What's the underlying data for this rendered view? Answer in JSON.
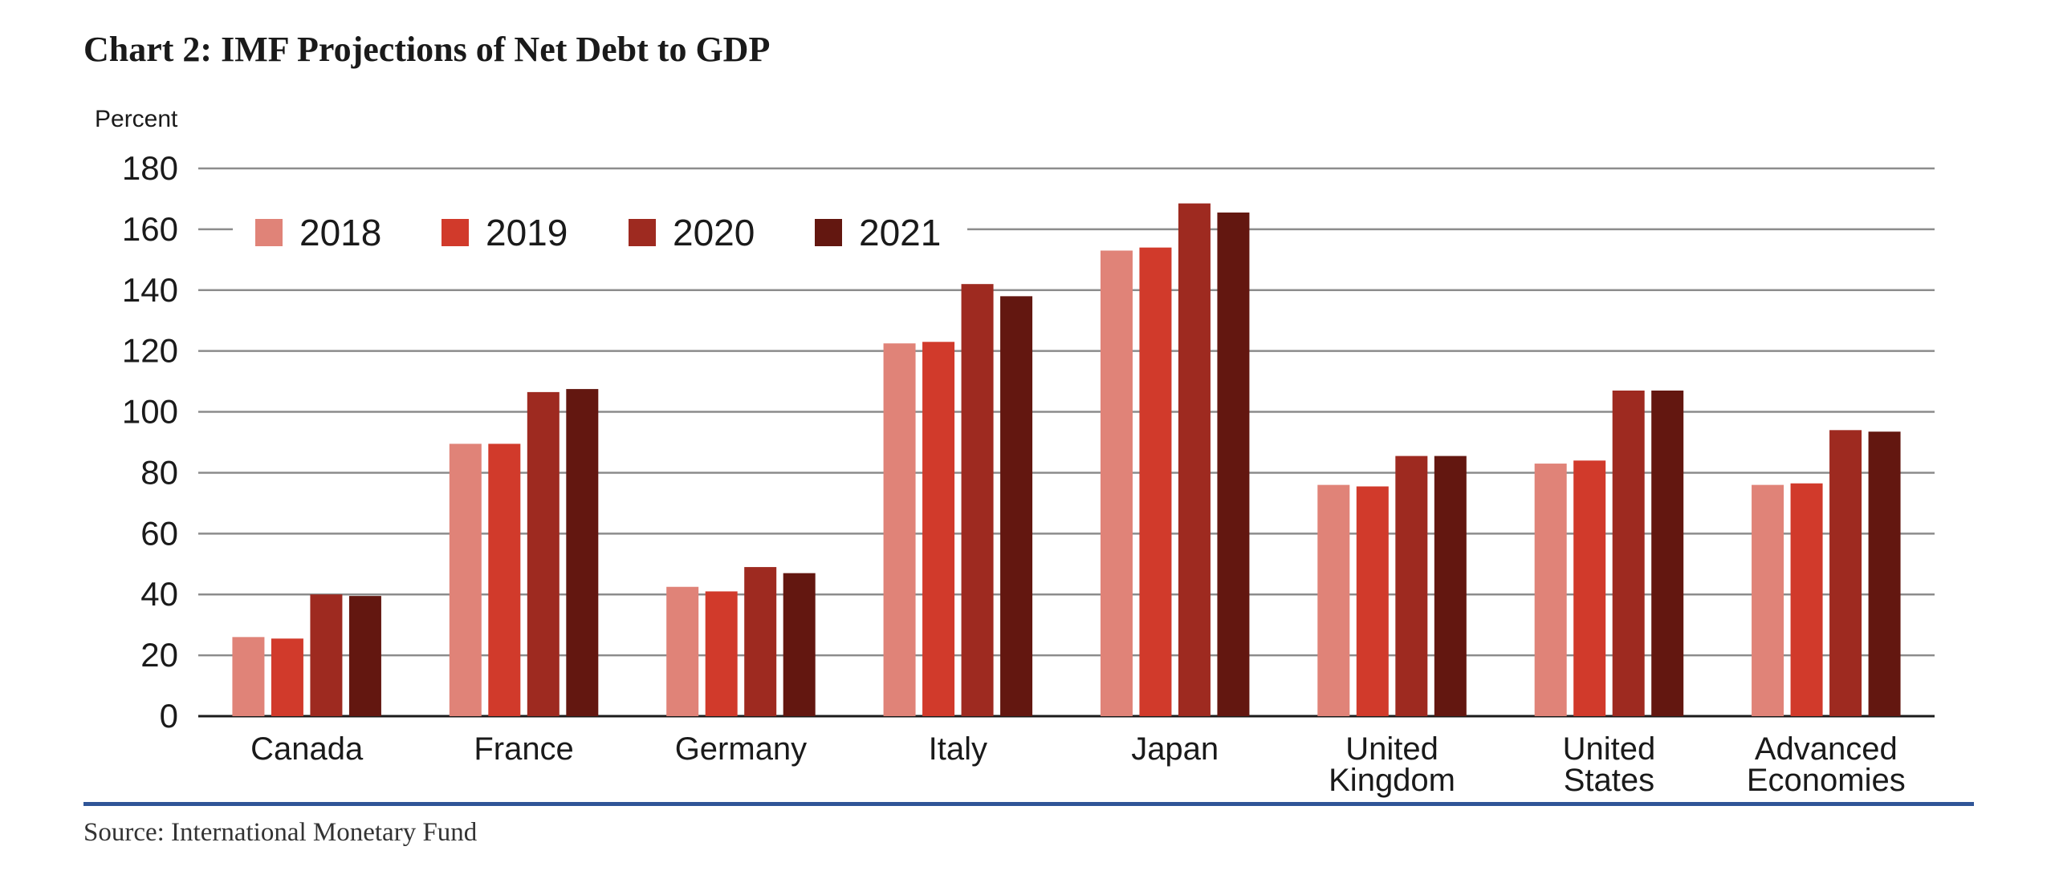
{
  "chart_data": {
    "type": "bar",
    "title": "Chart 2: IMF Projections of Net Debt to GDP",
    "ylabel": "Percent",
    "xlabel": "",
    "ylim": [
      0,
      180
    ],
    "yticks": [
      0,
      20,
      40,
      60,
      80,
      100,
      120,
      140,
      160,
      180
    ],
    "grid": true,
    "legend_position": "top-left",
    "categories": [
      [
        "Canada"
      ],
      [
        "France"
      ],
      [
        "Germany"
      ],
      [
        "Italy"
      ],
      [
        "Japan"
      ],
      [
        "United",
        "Kingdom"
      ],
      [
        "United",
        "States"
      ],
      [
        "Advanced",
        "Economies"
      ]
    ],
    "series": [
      {
        "name": "2018",
        "color": "#e08378",
        "values": [
          26,
          89.5,
          42.5,
          122.5,
          153,
          76,
          83,
          76
        ]
      },
      {
        "name": "2019",
        "color": "#d13a2b",
        "values": [
          25.5,
          89.5,
          41,
          123,
          154,
          75.5,
          84,
          76.5
        ]
      },
      {
        "name": "2020",
        "color": "#9e2a20",
        "values": [
          40,
          106.5,
          49,
          142,
          168.5,
          85.5,
          107,
          94
        ]
      },
      {
        "name": "2021",
        "color": "#631710",
        "values": [
          39.5,
          107.5,
          47,
          138,
          165.5,
          85.5,
          107,
          93.5
        ]
      }
    ]
  },
  "source": "Source: International Monetary Fund"
}
